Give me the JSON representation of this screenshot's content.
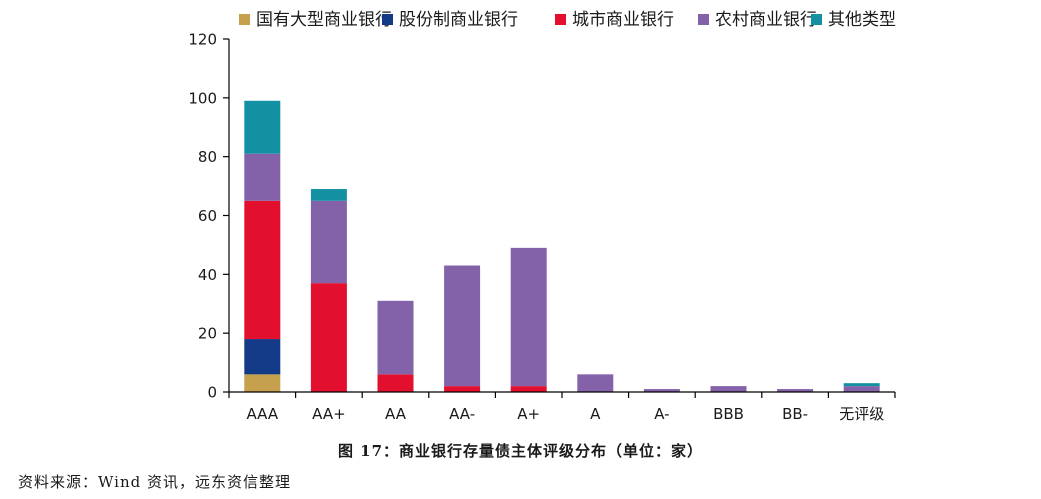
{
  "chart_data": {
    "type": "bar",
    "stacked": true,
    "categories": [
      "AAA",
      "AA+",
      "AA",
      "AA-",
      "A+",
      "A",
      "A-",
      "BBB",
      "BB-",
      "无评级"
    ],
    "series": [
      {
        "name": "国有大型商业银行",
        "color": "#c5a04d",
        "values": [
          6,
          0,
          0,
          0,
          0,
          0,
          0,
          0,
          0,
          0
        ]
      },
      {
        "name": "股份制商业银行",
        "color": "#123a86",
        "values": [
          12,
          0,
          0,
          0,
          0,
          0,
          0,
          0,
          0,
          0
        ]
      },
      {
        "name": "城市商业银行",
        "color": "#e2102e",
        "values": [
          47,
          37,
          6,
          2,
          2,
          0,
          0,
          0,
          0,
          0
        ]
      },
      {
        "name": "农村商业银行",
        "color": "#8462a9",
        "values": [
          16,
          28,
          25,
          41,
          47,
          6,
          1,
          2,
          1,
          2
        ]
      },
      {
        "name": "其他类型",
        "color": "#1391a3",
        "values": [
          18,
          4,
          0,
          0,
          0,
          0,
          0,
          0,
          0,
          1
        ]
      }
    ],
    "yticks": [
      0,
      20,
      40,
      60,
      80,
      100,
      120
    ],
    "ylim": [
      0,
      120
    ],
    "grid": false,
    "legend_position": "top-right"
  },
  "caption": "图 17：商业银行存量债主体评级分布（单位：家）",
  "source": "资料来源：Wind 资讯，远东资信整理"
}
